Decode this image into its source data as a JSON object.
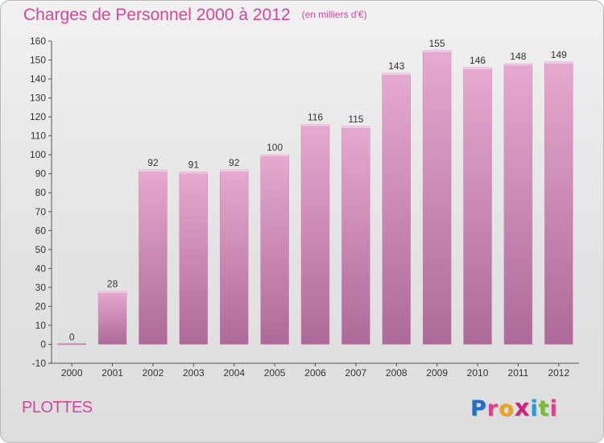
{
  "header": {
    "title": "Charges de Personnel 2000 à 2012",
    "subtitle": "(en milliers d'€)"
  },
  "footer": {
    "commune": "PLOTTES",
    "logo_letters": [
      "P",
      "r",
      "o",
      "x",
      "i",
      "t",
      "i"
    ],
    "logo_colors": [
      "#1f6fc8",
      "#e8398e",
      "#f3a01c",
      "#c9247f",
      "#1f9fd8",
      "#7bbf2a",
      "#e8398e"
    ]
  },
  "colors": {
    "bar_top": "#e6a9cf",
    "bar_bottom": "#ad6a98",
    "accent": "#d2469d"
  },
  "chart_data": {
    "type": "bar",
    "title": "Charges de Personnel 2000 à 2012",
    "subtitle": "(en milliers d'€)",
    "categories": [
      "2000",
      "2001",
      "2002",
      "2003",
      "2004",
      "2005",
      "2006",
      "2007",
      "2008",
      "2009",
      "2010",
      "2011",
      "2012"
    ],
    "values": [
      0,
      28,
      92,
      91,
      92,
      100,
      116,
      115,
      143,
      155,
      146,
      148,
      149
    ],
    "value_labels": [
      "0",
      "28",
      "92",
      "91",
      "92",
      "100",
      "116",
      "115",
      "143",
      "155",
      "146",
      "148",
      "149"
    ],
    "ylim": [
      -10,
      160
    ],
    "yticks": [
      -10,
      0,
      10,
      20,
      30,
      40,
      50,
      60,
      70,
      80,
      90,
      100,
      110,
      120,
      130,
      140,
      150,
      160
    ],
    "xlabel": "",
    "ylabel": "",
    "grid": false,
    "legend": "none"
  }
}
